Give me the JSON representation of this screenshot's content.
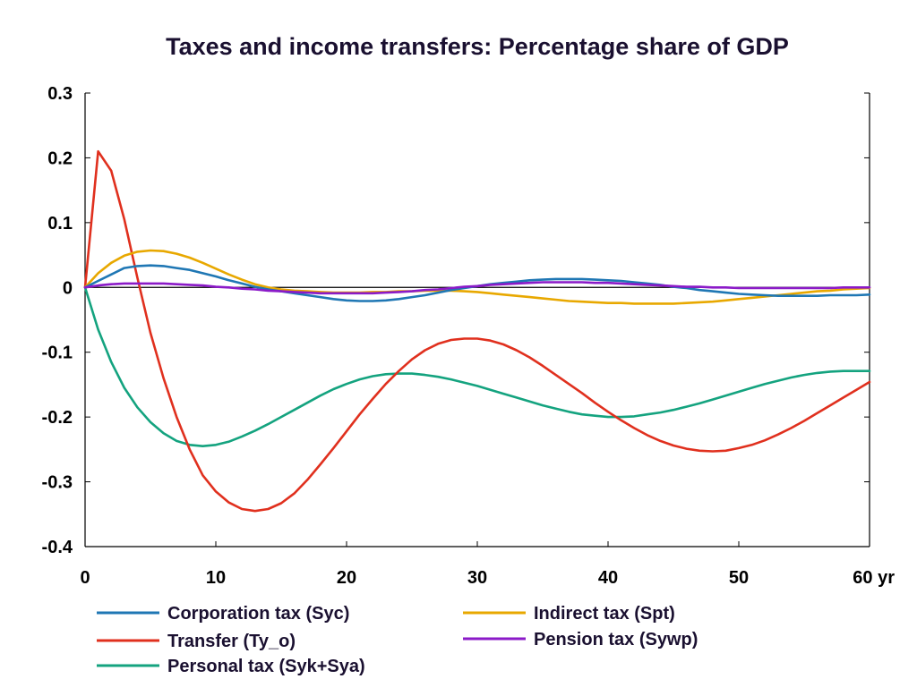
{
  "chart_data": {
    "type": "line",
    "title": "Taxes and income transfers: Percentage share of GDP",
    "xlabel": "",
    "ylabel": "",
    "x_unit_label": "yr",
    "xlim": [
      0,
      60
    ],
    "ylim": [
      -0.4,
      0.3
    ],
    "x_ticks": [
      0,
      10,
      20,
      30,
      40,
      50,
      60
    ],
    "x_tick_labels": [
      "0",
      "10",
      "20",
      "30",
      "40",
      "50",
      "60 yr"
    ],
    "y_ticks": [
      -0.4,
      -0.3,
      -0.2,
      -0.1,
      0,
      0.1,
      0.2,
      0.3
    ],
    "y_tick_labels": [
      "-0.4",
      "-0.3",
      "-0.2",
      "-0.1",
      "0",
      "0.1",
      "0.2",
      "0.3"
    ],
    "grid": false,
    "zero_line": true,
    "legend_position": "bottom",
    "x": [
      0,
      1,
      2,
      3,
      4,
      5,
      6,
      7,
      8,
      9,
      10,
      11,
      12,
      13,
      14,
      15,
      16,
      17,
      18,
      19,
      20,
      21,
      22,
      23,
      24,
      25,
      26,
      27,
      28,
      29,
      30,
      31,
      32,
      33,
      34,
      35,
      36,
      37,
      38,
      39,
      40,
      41,
      42,
      43,
      44,
      45,
      46,
      47,
      48,
      49,
      50,
      51,
      52,
      53,
      54,
      55,
      56,
      57,
      58,
      59,
      60
    ],
    "series": [
      {
        "name": "Corporation tax (Syc)",
        "color": "#1f77b4",
        "values": [
          0,
          0.01,
          0.02,
          0.03,
          0.033,
          0.034,
          0.033,
          0.03,
          0.027,
          0.022,
          0.017,
          0.011,
          0.006,
          0.001,
          -0.003,
          -0.006,
          -0.009,
          -0.012,
          -0.015,
          -0.018,
          -0.02,
          -0.021,
          -0.021,
          -0.02,
          -0.018,
          -0.015,
          -0.012,
          -0.008,
          -0.004,
          -0.001,
          0.002,
          0.005,
          0.007,
          0.009,
          0.011,
          0.012,
          0.013,
          0.013,
          0.013,
          0.012,
          0.011,
          0.01,
          0.008,
          0.006,
          0.004,
          0.001,
          -0.001,
          -0.004,
          -0.006,
          -0.008,
          -0.01,
          -0.011,
          -0.012,
          -0.013,
          -0.013,
          -0.013,
          -0.013,
          -0.012,
          -0.012,
          -0.012,
          -0.011
        ]
      },
      {
        "name": "Indirect tax (Spt)",
        "color": "#e8a800",
        "values": [
          0,
          0.022,
          0.038,
          0.049,
          0.055,
          0.057,
          0.056,
          0.052,
          0.046,
          0.038,
          0.029,
          0.02,
          0.012,
          0.005,
          0,
          -0.003,
          -0.005,
          -0.006,
          -0.007,
          -0.008,
          -0.008,
          -0.008,
          -0.007,
          -0.007,
          -0.006,
          -0.006,
          -0.005,
          -0.005,
          -0.005,
          -0.006,
          -0.007,
          -0.009,
          -0.011,
          -0.013,
          -0.015,
          -0.017,
          -0.019,
          -0.021,
          -0.022,
          -0.023,
          -0.024,
          -0.024,
          -0.025,
          -0.025,
          -0.025,
          -0.025,
          -0.024,
          -0.023,
          -0.022,
          -0.02,
          -0.018,
          -0.016,
          -0.014,
          -0.012,
          -0.01,
          -0.008,
          -0.006,
          -0.005,
          -0.003,
          -0.002,
          -0.001
        ]
      },
      {
        "name": "Transfer (Ty_o)",
        "color": "#e0301e",
        "values": [
          0,
          0.21,
          0.18,
          0.105,
          0.015,
          -0.07,
          -0.14,
          -0.2,
          -0.25,
          -0.29,
          -0.315,
          -0.332,
          -0.342,
          -0.345,
          -0.342,
          -0.333,
          -0.318,
          -0.297,
          -0.273,
          -0.248,
          -0.222,
          -0.196,
          -0.172,
          -0.149,
          -0.129,
          -0.111,
          -0.097,
          -0.087,
          -0.081,
          -0.079,
          -0.079,
          -0.082,
          -0.088,
          -0.097,
          -0.108,
          -0.121,
          -0.135,
          -0.149,
          -0.163,
          -0.178,
          -0.192,
          -0.205,
          -0.217,
          -0.228,
          -0.237,
          -0.244,
          -0.249,
          -0.252,
          -0.253,
          -0.252,
          -0.248,
          -0.243,
          -0.236,
          -0.227,
          -0.217,
          -0.206,
          -0.194,
          -0.182,
          -0.17,
          -0.158,
          -0.146
        ]
      },
      {
        "name": "Pension tax (Sywp)",
        "color": "#8b1ac8",
        "values": [
          0,
          0.003,
          0.005,
          0.006,
          0.006,
          0.006,
          0.006,
          0.005,
          0.004,
          0.003,
          0.001,
          0,
          -0.002,
          -0.003,
          -0.005,
          -0.006,
          -0.007,
          -0.008,
          -0.009,
          -0.009,
          -0.009,
          -0.009,
          -0.009,
          -0.008,
          -0.007,
          -0.006,
          -0.004,
          -0.003,
          -0.001,
          0.001,
          0.002,
          0.004,
          0.005,
          0.006,
          0.007,
          0.008,
          0.008,
          0.008,
          0.008,
          0.007,
          0.007,
          0.006,
          0.005,
          0.004,
          0.003,
          0.002,
          0.001,
          0.001,
          0,
          0,
          -0.001,
          -0.001,
          -0.001,
          -0.001,
          -0.001,
          -0.001,
          -0.001,
          -0.001,
          0,
          0,
          0
        ]
      },
      {
        "name": "Personal tax (Syk+Sya)",
        "color": "#14a37f",
        "values": [
          0,
          -0.065,
          -0.115,
          -0.155,
          -0.185,
          -0.208,
          -0.225,
          -0.237,
          -0.243,
          -0.245,
          -0.243,
          -0.238,
          -0.23,
          -0.221,
          -0.211,
          -0.2,
          -0.189,
          -0.178,
          -0.167,
          -0.157,
          -0.149,
          -0.142,
          -0.137,
          -0.134,
          -0.133,
          -0.133,
          -0.135,
          -0.138,
          -0.142,
          -0.147,
          -0.152,
          -0.158,
          -0.164,
          -0.17,
          -0.176,
          -0.182,
          -0.187,
          -0.192,
          -0.196,
          -0.198,
          -0.2,
          -0.2,
          -0.199,
          -0.196,
          -0.193,
          -0.189,
          -0.184,
          -0.179,
          -0.173,
          -0.167,
          -0.161,
          -0.155,
          -0.149,
          -0.144,
          -0.139,
          -0.135,
          -0.132,
          -0.13,
          -0.129,
          -0.129,
          -0.129
        ]
      }
    ],
    "legend": [
      {
        "label": "Corporation tax (Syc)",
        "color": "#1f77b4"
      },
      {
        "label": "Indirect tax (Spt)",
        "color": "#e8a800"
      },
      {
        "label": "Transfer (Ty_o)",
        "color": "#e0301e"
      },
      {
        "label": "Pension tax (Sywp)",
        "color": "#8b1ac8"
      },
      {
        "label": "Personal tax (Syk+Sya)",
        "color": "#14a37f"
      }
    ]
  }
}
